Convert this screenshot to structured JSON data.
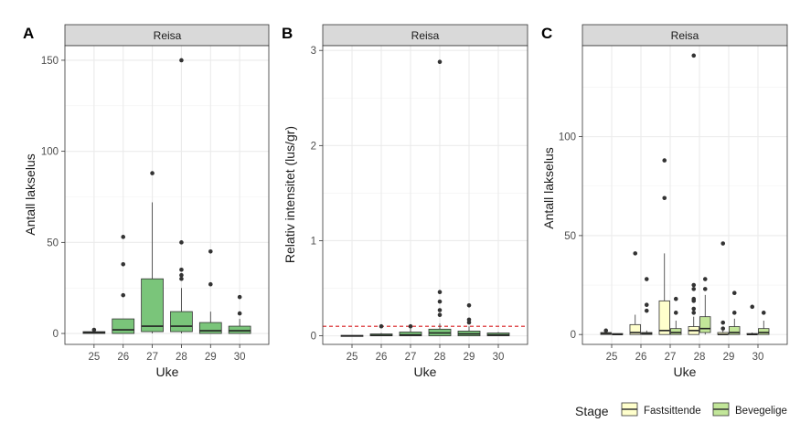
{
  "chart_data": [
    {
      "type": "box",
      "panel_tag": "A",
      "strip": "Reisa",
      "xlabel": "Uke",
      "ylabel": "Antall lakselus",
      "categories": [
        "25",
        "26",
        "27",
        "28",
        "29",
        "30"
      ],
      "ylim": [
        -6,
        158
      ],
      "yticks": [
        0,
        50,
        100,
        150
      ],
      "ytick_labels": [
        "0",
        "50",
        "100",
        "150"
      ],
      "fill": "#7ac57a",
      "boxes": [
        {
          "x": "25",
          "q1": 0,
          "med": 0.5,
          "q3": 1,
          "lo": 0,
          "hi": 1,
          "out": [
            2
          ]
        },
        {
          "x": "26",
          "q1": 0,
          "med": 2,
          "q3": 8,
          "lo": 0,
          "hi": 8,
          "out": [
            21,
            38,
            53
          ]
        },
        {
          "x": "27",
          "q1": 1,
          "med": 4,
          "q3": 30,
          "lo": 0,
          "hi": 72,
          "out": [
            88
          ]
        },
        {
          "x": "28",
          "q1": 1,
          "med": 4,
          "q3": 12,
          "lo": 0,
          "hi": 25,
          "out": [
            30,
            32,
            35,
            50,
            150
          ]
        },
        {
          "x": "29",
          "q1": 0,
          "med": 1.5,
          "q3": 6,
          "lo": 0,
          "hi": 12,
          "out": [
            27,
            45
          ]
        },
        {
          "x": "30",
          "q1": 0,
          "med": 1.5,
          "q3": 4,
          "lo": 0,
          "hi": 8,
          "out": [
            11,
            20
          ]
        }
      ]
    },
    {
      "type": "box",
      "panel_tag": "B",
      "strip": "Reisa",
      "xlabel": "Uke",
      "ylabel": "Relativ intensitet (lus/gr)",
      "categories": [
        "25",
        "26",
        "27",
        "28",
        "29",
        "30"
      ],
      "ylim": [
        -0.09,
        3.05
      ],
      "yticks": [
        0,
        1,
        2,
        3
      ],
      "ytick_labels": [
        "0",
        "1",
        "2",
        "3"
      ],
      "fill": "#7ac57a",
      "reference_line": {
        "y": 0.1,
        "color": "#d7191c",
        "style": "dashed"
      },
      "boxes": [
        {
          "x": "25",
          "q1": 0,
          "med": 0,
          "q3": 0.005,
          "lo": 0,
          "hi": 0.005,
          "out": []
        },
        {
          "x": "26",
          "q1": 0,
          "med": 0.005,
          "q3": 0.02,
          "lo": 0,
          "hi": 0.03,
          "out": [
            0.1
          ]
        },
        {
          "x": "27",
          "q1": 0,
          "med": 0.01,
          "q3": 0.04,
          "lo": 0,
          "hi": 0.08,
          "out": [
            0.1
          ]
        },
        {
          "x": "28",
          "q1": 0,
          "med": 0.03,
          "q3": 0.07,
          "lo": 0,
          "hi": 0.13,
          "out": [
            0.22,
            0.27,
            0.36,
            0.46,
            2.88
          ]
        },
        {
          "x": "29",
          "q1": 0,
          "med": 0.02,
          "q3": 0.05,
          "lo": 0,
          "hi": 0.1,
          "out": [
            0.14,
            0.17,
            0.32
          ]
        },
        {
          "x": "30",
          "q1": 0,
          "med": 0.01,
          "q3": 0.03,
          "lo": 0,
          "hi": 0.04,
          "out": []
        }
      ]
    },
    {
      "type": "box",
      "panel_tag": "C",
      "strip": "Reisa",
      "xlabel": "Uke",
      "ylabel": "Antall lakselus",
      "categories": [
        "25",
        "26",
        "27",
        "28",
        "29",
        "30"
      ],
      "ylim": [
        -5,
        146
      ],
      "yticks": [
        0,
        50,
        100
      ],
      "ytick_labels": [
        "0",
        "50",
        "100"
      ],
      "series": [
        {
          "name": "Fastsittende",
          "fill": "#ffffcc",
          "boxes": [
            {
              "x": "25",
              "q1": 0,
              "med": 0.5,
              "q3": 1,
              "lo": 0,
              "hi": 1,
              "out": [
                2
              ]
            },
            {
              "x": "26",
              "q1": 0,
              "med": 1,
              "q3": 5,
              "lo": 0,
              "hi": 10,
              "out": [
                41
              ]
            },
            {
              "x": "27",
              "q1": 0,
              "med": 2,
              "q3": 17,
              "lo": 0,
              "hi": 41,
              "out": [
                69,
                88
              ]
            },
            {
              "x": "28",
              "q1": 0,
              "med": 2,
              "q3": 4,
              "lo": 0,
              "hi": 9,
              "out": [
                11,
                13,
                17,
                18,
                23,
                25,
                141
              ]
            },
            {
              "x": "29",
              "q1": 0,
              "med": 0,
              "q3": 1,
              "lo": 0,
              "hi": 2,
              "out": [
                3,
                6,
                46
              ]
            },
            {
              "x": "30",
              "q1": 0,
              "med": 0,
              "q3": 0.5,
              "lo": 0,
              "hi": 1,
              "out": [
                14
              ]
            }
          ]
        },
        {
          "name": "Bevegelige",
          "fill": "#c2e699",
          "boxes": [
            {
              "x": "25",
              "q1": 0,
              "med": 0,
              "q3": 0.5,
              "lo": 0,
              "hi": 0.5,
              "out": []
            },
            {
              "x": "26",
              "q1": 0,
              "med": 0.5,
              "q3": 1,
              "lo": 0,
              "hi": 2,
              "out": [
                12,
                15,
                28
              ]
            },
            {
              "x": "27",
              "q1": 0,
              "med": 1,
              "q3": 3,
              "lo": 0,
              "hi": 7,
              "out": [
                11,
                18
              ]
            },
            {
              "x": "28",
              "q1": 1,
              "med": 3,
              "q3": 9,
              "lo": 0,
              "hi": 20,
              "out": [
                23,
                28
              ]
            },
            {
              "x": "29",
              "q1": 0,
              "med": 1,
              "q3": 4,
              "lo": 0,
              "hi": 8,
              "out": [
                11,
                21
              ]
            },
            {
              "x": "30",
              "q1": 0,
              "med": 1,
              "q3": 3,
              "lo": 0,
              "hi": 7,
              "out": [
                11
              ]
            }
          ]
        }
      ]
    }
  ],
  "legend": {
    "title": "Stage",
    "items": [
      {
        "label": "Fastsittende",
        "fill": "#ffffcc"
      },
      {
        "label": "Bevegelige",
        "fill": "#c2e699"
      }
    ]
  }
}
